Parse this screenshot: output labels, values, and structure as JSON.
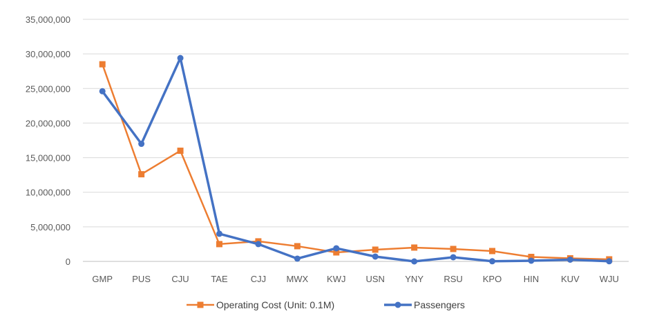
{
  "chart_data": {
    "type": "line",
    "title": "",
    "xlabel": "",
    "ylabel": "",
    "categories": [
      "GMP",
      "PUS",
      "CJU",
      "TAE",
      "CJJ",
      "MWX",
      "KWJ",
      "USN",
      "YNY",
      "RSU",
      "KPO",
      "HIN",
      "KUV",
      "WJU"
    ],
    "ylim": [
      0,
      35000000
    ],
    "yticks": [
      0,
      5000000,
      10000000,
      15000000,
      20000000,
      25000000,
      30000000,
      35000000
    ],
    "ytick_labels": [
      "0",
      "5,000,000",
      "10,000,000",
      "15,000,000",
      "20,000,000",
      "25,000,000",
      "30,000,000",
      "35,000,000"
    ],
    "grid": true,
    "legend_position": "bottom",
    "series": [
      {
        "name": "Operating Cost (Unit: 0.1M)",
        "color": "#ED7D31",
        "marker": "square",
        "values": [
          28500000,
          12600000,
          16000000,
          2500000,
          2900000,
          2200000,
          1300000,
          1700000,
          2000000,
          1800000,
          1500000,
          650000,
          450000,
          300000
        ]
      },
      {
        "name": "Passengers",
        "color": "#4472C4",
        "marker": "circle",
        "values": [
          24600000,
          17000000,
          29400000,
          4000000,
          2500000,
          400000,
          1900000,
          700000,
          0,
          600000,
          20000,
          100000,
          250000,
          20000
        ]
      }
    ]
  }
}
